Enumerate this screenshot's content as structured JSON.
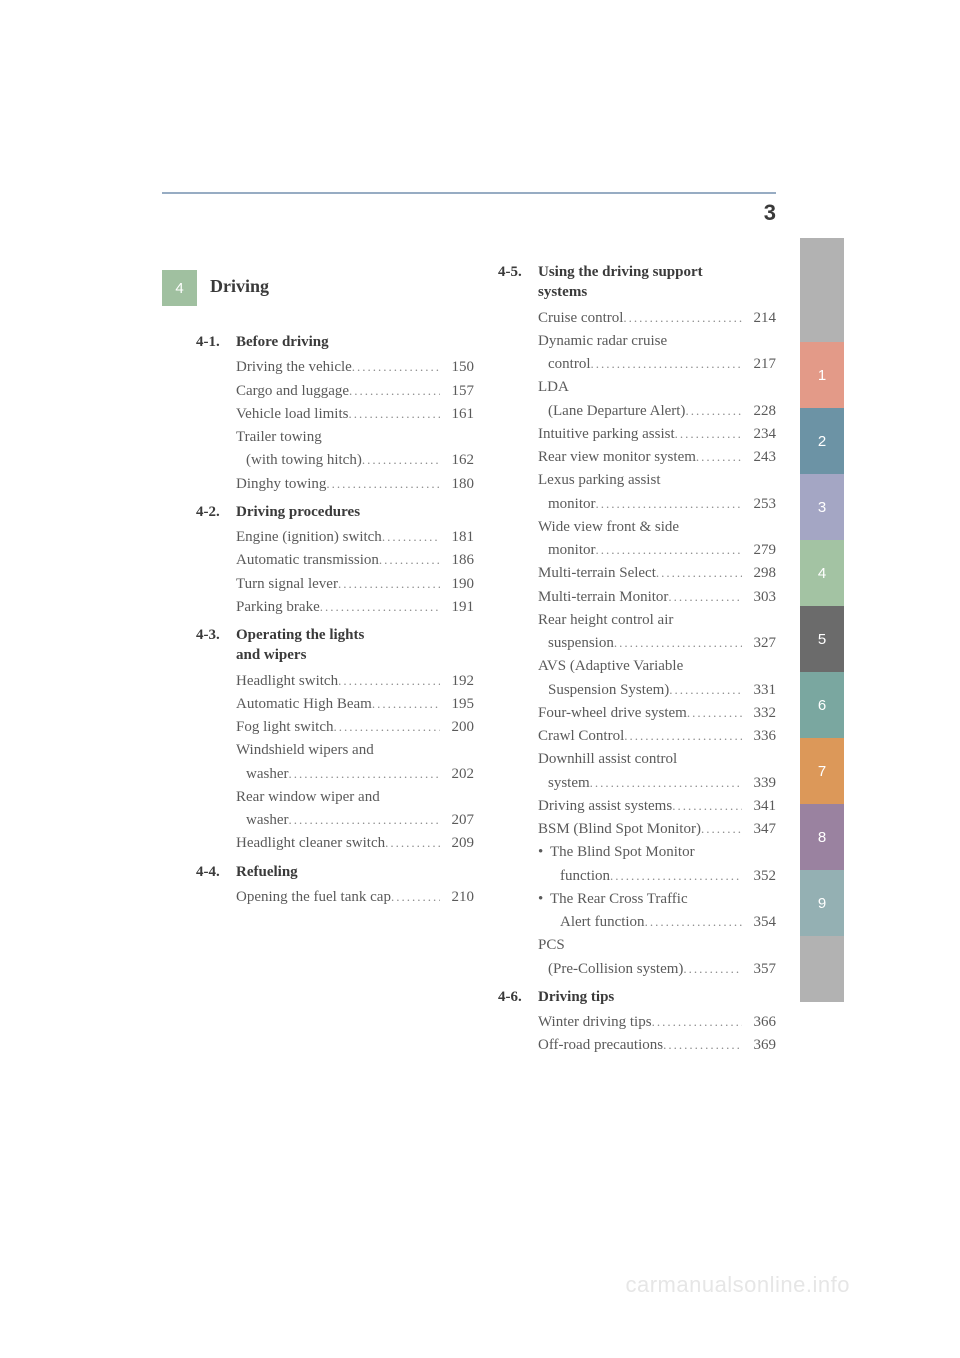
{
  "page_number": "3",
  "chapter": {
    "tab_number": "4",
    "title": "Driving",
    "tab_bg": "#a0c0a0"
  },
  "rule_color": "#97acc3",
  "leaders_char": "..................................................",
  "sidebar": {
    "top_block_bg": "#b2b2b2",
    "bottom_block_bg": "#b2b2b2",
    "tabs": [
      {
        "n": "1",
        "bg": "#e39a88"
      },
      {
        "n": "2",
        "bg": "#6c93a5"
      },
      {
        "n": "3",
        "bg": "#a4a6c4"
      },
      {
        "n": "4",
        "bg": "#a3c3a3"
      },
      {
        "n": "5",
        "bg": "#6b6b6b"
      },
      {
        "n": "6",
        "bg": "#7aa7a0"
      },
      {
        "n": "7",
        "bg": "#dc9859"
      },
      {
        "n": "8",
        "bg": "#9a82a0"
      },
      {
        "n": "9",
        "bg": "#94b0b3"
      }
    ]
  },
  "left_sections": [
    {
      "num": "4-1.",
      "title": "Before driving",
      "entries": [
        {
          "label": "Driving the vehicle",
          "page": "150"
        },
        {
          "label": "Cargo and luggage",
          "page": "157"
        },
        {
          "label": "Vehicle load limits",
          "page": "161"
        },
        {
          "label": "Trailer towing",
          "cont": "(with towing hitch)",
          "page": "162"
        },
        {
          "label": "Dinghy towing",
          "page": "180"
        }
      ]
    },
    {
      "num": "4-2.",
      "title": "Driving procedures",
      "entries": [
        {
          "label": "Engine (ignition) switch",
          "page": "181"
        },
        {
          "label": "Automatic transmission",
          "page": "186"
        },
        {
          "label": "Turn signal lever",
          "page": "190"
        },
        {
          "label": "Parking brake",
          "page": "191"
        }
      ]
    },
    {
      "num": "4-3.",
      "title": "Operating the lights",
      "title2": "and wipers",
      "entries": [
        {
          "label": "Headlight switch",
          "page": "192"
        },
        {
          "label": "Automatic High Beam",
          "page": "195"
        },
        {
          "label": "Fog light switch",
          "page": "200"
        },
        {
          "label": "Windshield wipers and",
          "cont": "washer",
          "page": "202"
        },
        {
          "label": "Rear window wiper and",
          "cont": "washer",
          "page": "207"
        },
        {
          "label": "Headlight cleaner switch",
          "page": "209"
        }
      ]
    },
    {
      "num": "4-4.",
      "title": "Refueling",
      "entries": [
        {
          "label": "Opening the fuel tank cap",
          "page": "210"
        }
      ]
    }
  ],
  "right_sections": [
    {
      "num": "4-5.",
      "title": "Using the driving support",
      "title2": "systems",
      "entries": [
        {
          "label": "Cruise control",
          "page": "214"
        },
        {
          "label": "Dynamic radar cruise",
          "cont": "control",
          "page": "217"
        },
        {
          "label": "LDA",
          "cont": "(Lane Departure Alert)",
          "page": "228"
        },
        {
          "label": "Intuitive parking assist",
          "page": "234"
        },
        {
          "label": "Rear view monitor system",
          "page": "243"
        },
        {
          "label": "Lexus parking assist",
          "cont": "monitor",
          "page": "253"
        },
        {
          "label": "Wide view front & side",
          "cont": "monitor",
          "page": "279"
        },
        {
          "label": "Multi-terrain Select",
          "page": "298"
        },
        {
          "label": "Multi-terrain Monitor",
          "page": "303"
        },
        {
          "label": "Rear height control air",
          "cont": "suspension",
          "page": "327"
        },
        {
          "label": "AVS (Adaptive Variable",
          "cont": "Suspension System)",
          "page": "331"
        },
        {
          "label": "Four-wheel drive system",
          "page": "332"
        },
        {
          "label": "Crawl Control",
          "page": "336"
        },
        {
          "label": "Downhill assist control",
          "cont": "system",
          "page": "339"
        },
        {
          "label": "Driving assist systems",
          "page": "341"
        },
        {
          "label": "BSM (Blind Spot Monitor)",
          "page": "347"
        },
        {
          "bullet": "•",
          "label": "The Blind Spot Monitor",
          "cont": "function",
          "page": "352"
        },
        {
          "bullet": "•",
          "label": "The Rear Cross Traffic",
          "cont": "Alert function",
          "page": "354"
        },
        {
          "label": "PCS",
          "cont": "(Pre-Collision system)",
          "page": "357"
        }
      ]
    },
    {
      "num": "4-6.",
      "title": "Driving tips",
      "entries": [
        {
          "label": "Winter driving tips",
          "page": "366"
        },
        {
          "label": "Off-road precautions",
          "page": "369"
        }
      ]
    }
  ],
  "watermark": "carmanualsonline.info"
}
